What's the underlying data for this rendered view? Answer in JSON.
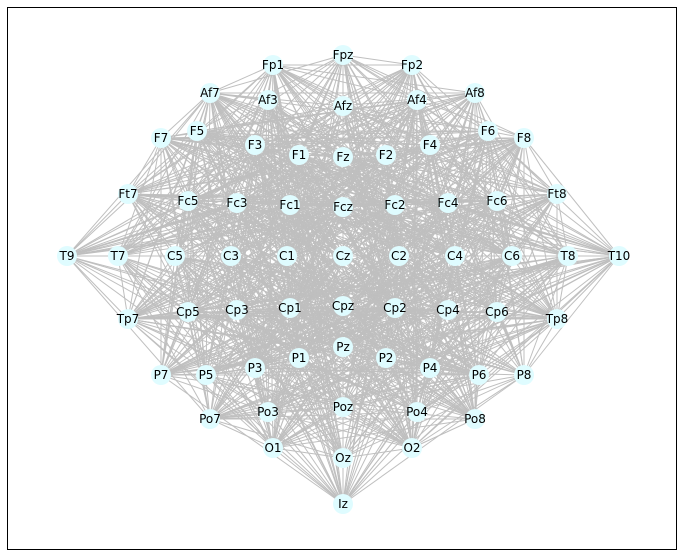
{
  "graph": {
    "colors": {
      "edge": "#bfbfbf",
      "node_fill": "#dffcff",
      "label": "#000000",
      "frame": "#000000"
    },
    "nodes": [
      {
        "id": "Fpz",
        "label": "Fpz"
      },
      {
        "id": "Fp1",
        "label": "Fp1"
      },
      {
        "id": "Fp2",
        "label": "Fp2"
      },
      {
        "id": "Af7",
        "label": "Af7"
      },
      {
        "id": "Af3",
        "label": "Af3"
      },
      {
        "id": "Afz",
        "label": "Afz"
      },
      {
        "id": "Af4",
        "label": "Af4"
      },
      {
        "id": "Af8",
        "label": "Af8"
      },
      {
        "id": "F7",
        "label": "F7"
      },
      {
        "id": "F5",
        "label": "F5"
      },
      {
        "id": "F3",
        "label": "F3"
      },
      {
        "id": "F1",
        "label": "F1"
      },
      {
        "id": "Fz",
        "label": "Fz"
      },
      {
        "id": "F2",
        "label": "F2"
      },
      {
        "id": "F4",
        "label": "F4"
      },
      {
        "id": "F6",
        "label": "F6"
      },
      {
        "id": "F8",
        "label": "F8"
      },
      {
        "id": "Ft7",
        "label": "Ft7"
      },
      {
        "id": "Fc5",
        "label": "Fc5"
      },
      {
        "id": "Fc3",
        "label": "Fc3"
      },
      {
        "id": "Fc1",
        "label": "Fc1"
      },
      {
        "id": "Fcz",
        "label": "Fcz"
      },
      {
        "id": "Fc2",
        "label": "Fc2"
      },
      {
        "id": "Fc4",
        "label": "Fc4"
      },
      {
        "id": "Fc6",
        "label": "Fc6"
      },
      {
        "id": "Ft8",
        "label": "Ft8"
      },
      {
        "id": "T9",
        "label": "T9"
      },
      {
        "id": "T7",
        "label": "T7"
      },
      {
        "id": "C5",
        "label": "C5"
      },
      {
        "id": "C3",
        "label": "C3"
      },
      {
        "id": "C1",
        "label": "C1"
      },
      {
        "id": "Cz",
        "label": "Cz"
      },
      {
        "id": "C2",
        "label": "C2"
      },
      {
        "id": "C4",
        "label": "C4"
      },
      {
        "id": "C6",
        "label": "C6"
      },
      {
        "id": "T8",
        "label": "T8"
      },
      {
        "id": "T10",
        "label": "T10"
      },
      {
        "id": "Tp7",
        "label": "Tp7"
      },
      {
        "id": "Cp5",
        "label": "Cp5"
      },
      {
        "id": "Cp3",
        "label": "Cp3"
      },
      {
        "id": "Cp1",
        "label": "Cp1"
      },
      {
        "id": "Cpz",
        "label": "Cpz"
      },
      {
        "id": "Cp2",
        "label": "Cp2"
      },
      {
        "id": "Cp4",
        "label": "Cp4"
      },
      {
        "id": "Cp6",
        "label": "Cp6"
      },
      {
        "id": "Tp8",
        "label": "Tp8"
      },
      {
        "id": "Pz",
        "label": "Pz"
      },
      {
        "id": "P1",
        "label": "P1"
      },
      {
        "id": "P2",
        "label": "P2"
      },
      {
        "id": "P3",
        "label": "P3"
      },
      {
        "id": "P4",
        "label": "P4"
      },
      {
        "id": "P5",
        "label": "P5"
      },
      {
        "id": "P6",
        "label": "P6"
      },
      {
        "id": "P7",
        "label": "P7"
      },
      {
        "id": "P8",
        "label": "P8"
      },
      {
        "id": "Poz",
        "label": "Poz"
      },
      {
        "id": "Po3",
        "label": "Po3"
      },
      {
        "id": "Po4",
        "label": "Po4"
      },
      {
        "id": "Po7",
        "label": "Po7"
      },
      {
        "id": "Po8",
        "label": "Po8"
      },
      {
        "id": "O1",
        "label": "O1"
      },
      {
        "id": "Oz",
        "label": "Oz"
      },
      {
        "id": "O2",
        "label": "O2"
      },
      {
        "id": "Iz",
        "label": "Iz"
      }
    ]
  }
}
